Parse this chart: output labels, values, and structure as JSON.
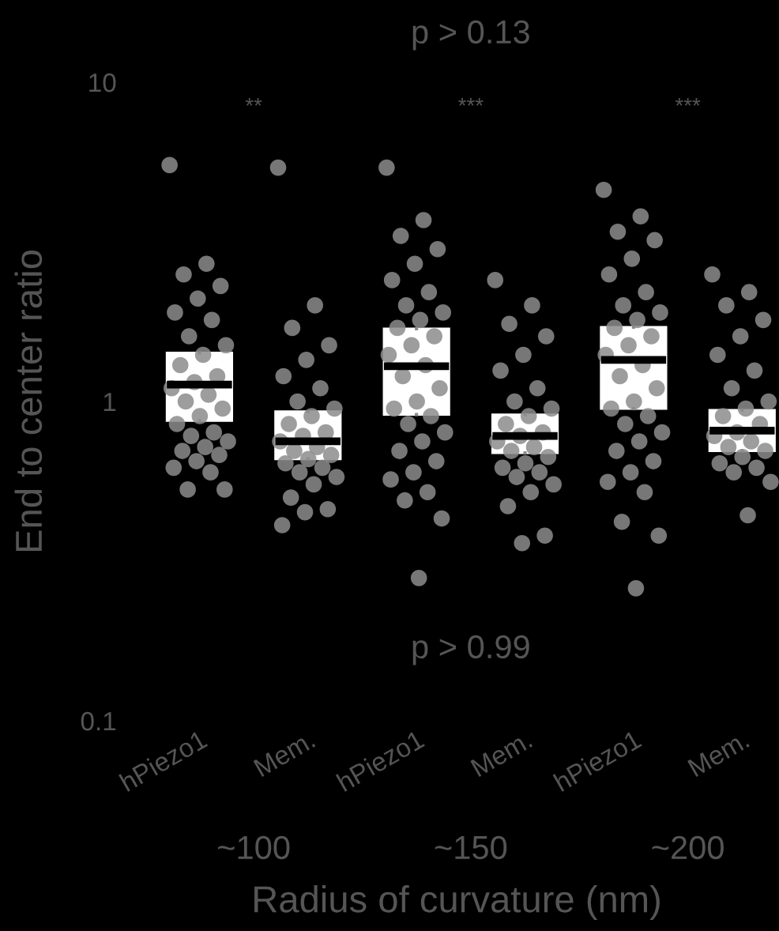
{
  "chart_data": {
    "type": "box",
    "ylabel": "End to center ratio",
    "xlabel": "Radius of curvature (nm)",
    "categories": [
      "hPiezo1",
      "Mem.",
      "hPiezo1",
      "Mem.",
      "hPiezo1",
      "Mem."
    ],
    "log": true,
    "ylim": [
      0.1,
      10
    ],
    "yticks": [
      0.1,
      1,
      10
    ],
    "grid": false,
    "legend": false,
    "boxes": [
      {
        "low": 0.87,
        "q1": 0.87,
        "median": 1.13,
        "q3": 1.42,
        "high": 1.42,
        "outliers": [
          5.5,
          2.7,
          2.5,
          2.3,
          2.1,
          1.9,
          1.8,
          1.6,
          1.5,
          1.4,
          1.3,
          1.2,
          1.15,
          1.1,
          1.05,
          1.0,
          0.95,
          0.9,
          0.85,
          0.8,
          0.78,
          0.75,
          0.72,
          0.7,
          0.68,
          0.65,
          0.62,
          0.6,
          0.53,
          0.53
        ]
      },
      {
        "low": 0.66,
        "q1": 0.66,
        "median": 0.75,
        "q3": 0.93,
        "high": 0.93,
        "outliers": [
          5.4,
          2.0,
          1.7,
          1.5,
          1.35,
          1.2,
          1.1,
          1.0,
          0.95,
          0.9,
          0.85,
          0.8,
          0.78,
          0.75,
          0.72,
          0.7,
          0.68,
          0.66,
          0.64,
          0.62,
          0.6,
          0.58,
          0.55,
          0.5,
          0.46,
          0.45,
          0.41
        ]
      },
      {
        "low": 0.91,
        "q1": 0.91,
        "median": 1.29,
        "q3": 1.69,
        "high": 1.69,
        "outliers": [
          5.4,
          3.7,
          3.3,
          3.0,
          2.7,
          2.4,
          2.2,
          2.0,
          1.9,
          1.8,
          1.7,
          1.6,
          1.5,
          1.4,
          1.3,
          1.2,
          1.1,
          1.0,
          0.95,
          0.9,
          0.85,
          0.8,
          0.75,
          0.7,
          0.65,
          0.6,
          0.57,
          0.52,
          0.49,
          0.43,
          0.28
        ]
      },
      {
        "low": 0.69,
        "q1": 0.69,
        "median": 0.78,
        "q3": 0.91,
        "high": 0.91,
        "outliers": [
          2.4,
          2.0,
          1.75,
          1.6,
          1.4,
          1.25,
          1.1,
          1.0,
          0.95,
          0.9,
          0.85,
          0.8,
          0.78,
          0.75,
          0.72,
          0.7,
          0.67,
          0.64,
          0.62,
          0.6,
          0.58,
          0.55,
          0.52,
          0.47,
          0.38,
          0.36
        ]
      },
      {
        "low": 0.95,
        "q1": 0.95,
        "median": 1.35,
        "q3": 1.71,
        "high": 1.71,
        "outliers": [
          4.6,
          3.8,
          3.4,
          3.2,
          2.8,
          2.5,
          2.2,
          2.0,
          1.9,
          1.8,
          1.7,
          1.6,
          1.5,
          1.4,
          1.3,
          1.2,
          1.1,
          1.0,
          0.95,
          0.9,
          0.85,
          0.8,
          0.75,
          0.7,
          0.65,
          0.6,
          0.56,
          0.52,
          0.42,
          0.38,
          0.26
        ]
      },
      {
        "low": 0.7,
        "q1": 0.7,
        "median": 0.81,
        "q3": 0.94,
        "high": 0.94,
        "outliers": [
          2.5,
          2.2,
          2.0,
          1.8,
          1.6,
          1.4,
          1.25,
          1.1,
          1.0,
          0.95,
          0.9,
          0.85,
          0.8,
          0.78,
          0.75,
          0.72,
          0.7,
          0.67,
          0.64,
          0.62,
          0.6,
          0.56,
          0.44
        ]
      }
    ],
    "color": "#ffffff",
    "annotations": [
      "p > 0.13",
      "**",
      "***",
      "***",
      "p > 0.99",
      "~100",
      "~150",
      "~200"
    ]
  }
}
